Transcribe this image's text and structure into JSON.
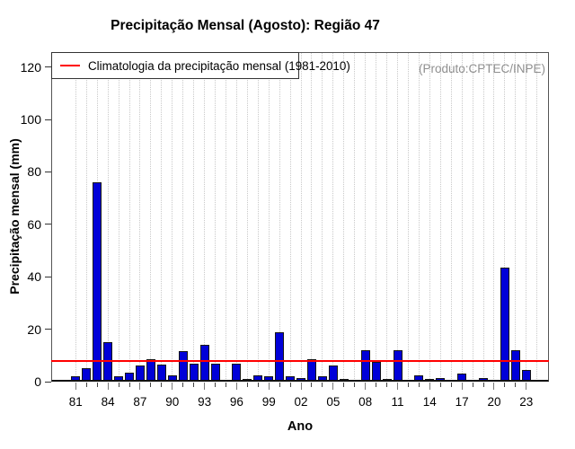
{
  "title": "Precipitação Mensal (Agosto): Região 47",
  "annotation": "(Produto:CPTEC/INPE)",
  "legend": {
    "label": "Climatologia da precipitação mensal (1981-2010)",
    "line_color": "#ff0000"
  },
  "x_axis": {
    "label": "Ano",
    "tick_labels": [
      "81",
      "84",
      "87",
      "90",
      "93",
      "96",
      "99",
      "02",
      "05",
      "08",
      "11",
      "14",
      "17",
      "20",
      "23"
    ],
    "label_every": 3
  },
  "y_axis": {
    "label": "Precipitação mensal (mm)",
    "ticks": [
      0,
      20,
      40,
      60,
      80,
      100,
      120
    ]
  },
  "chart_data": {
    "type": "bar",
    "title": "Precipitação Mensal (Agosto): Região 47",
    "xlabel": "Ano",
    "ylabel": "Precipitação mensal (mm)",
    "x": [
      1981,
      1982,
      1983,
      1984,
      1985,
      1986,
      1987,
      1988,
      1989,
      1990,
      1991,
      1992,
      1993,
      1994,
      1995,
      1996,
      1997,
      1998,
      1999,
      2000,
      2001,
      2002,
      2003,
      2004,
      2005,
      2006,
      2007,
      2008,
      2009,
      2010,
      2011,
      2012,
      2013,
      2014,
      2015,
      2016,
      2017,
      2018,
      2019,
      2020,
      2021,
      2022,
      2023
    ],
    "values": [
      2,
      5,
      76,
      15,
      2,
      3.5,
      6,
      8.5,
      6.5,
      2.5,
      11.5,
      7,
      14,
      7,
      0,
      7,
      1,
      2.5,
      2,
      19,
      2,
      1.5,
      8.5,
      2,
      6,
      1,
      0.3,
      12,
      7.5,
      1,
      12,
      0,
      2.5,
      1,
      1.5,
      0.3,
      3,
      0.6,
      1.2,
      0.5,
      43.5,
      12,
      4.5
    ],
    "climatology_line": 8,
    "climatology_label": "Climatologia da precipitação mensal (1981-2010)",
    "ylim": [
      0,
      125
    ],
    "grid": "vertical-dotted",
    "legend_position": "top-left",
    "bar_color": "#0000d8",
    "line_color": "#ff0000"
  }
}
